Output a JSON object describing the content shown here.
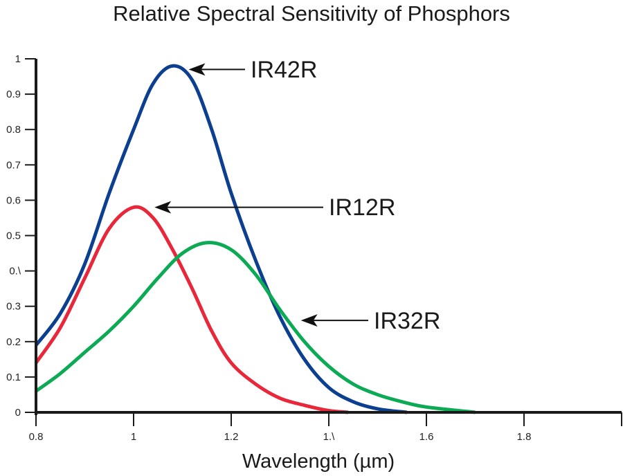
{
  "chart_data": {
    "type": "line",
    "title": "Relative Spectral Sensitivity of Phosphors",
    "xlabel": "Wavelength (µm)",
    "ylabel": "",
    "xlim": [
      0.8,
      2.0
    ],
    "ylim": [
      0,
      1
    ],
    "x_ticks": [
      0.8,
      1.0,
      1.2,
      1.4,
      1.6,
      1.8
    ],
    "x_tick_labels": [
      "0.8",
      "1",
      "1.2",
      "1.\\",
      "1.6",
      "1.8"
    ],
    "y_ticks": [
      0,
      0.1,
      0.2,
      0.3,
      0.4,
      0.5,
      0.6,
      0.7,
      0.8,
      0.9,
      1
    ],
    "y_tick_labels": [
      "0",
      "0.1",
      "0.2",
      "0.3",
      "0.\\",
      "0.5",
      "0.6",
      "0.7",
      "0.8",
      "0.9",
      "1"
    ],
    "grid": false,
    "legend": "none (inline arrow annotations)",
    "series": [
      {
        "name": "IR42R",
        "color": "#0d3f91",
        "points": [
          [
            0.8,
            0.19
          ],
          [
            0.85,
            0.28
          ],
          [
            0.9,
            0.42
          ],
          [
            0.95,
            0.62
          ],
          [
            1.0,
            0.8
          ],
          [
            1.04,
            0.93
          ],
          [
            1.08,
            0.98
          ],
          [
            1.12,
            0.94
          ],
          [
            1.16,
            0.8
          ],
          [
            1.2,
            0.62
          ],
          [
            1.25,
            0.43
          ],
          [
            1.3,
            0.27
          ],
          [
            1.35,
            0.15
          ],
          [
            1.4,
            0.07
          ],
          [
            1.45,
            0.03
          ],
          [
            1.5,
            0.01
          ],
          [
            1.56,
            0.0
          ]
        ]
      },
      {
        "name": "IR12R",
        "color": "#e8283a",
        "points": [
          [
            0.8,
            0.14
          ],
          [
            0.85,
            0.24
          ],
          [
            0.9,
            0.38
          ],
          [
            0.95,
            0.52
          ],
          [
            1.0,
            0.58
          ],
          [
            1.04,
            0.55
          ],
          [
            1.08,
            0.46
          ],
          [
            1.12,
            0.35
          ],
          [
            1.16,
            0.23
          ],
          [
            1.2,
            0.14
          ],
          [
            1.25,
            0.08
          ],
          [
            1.3,
            0.04
          ],
          [
            1.35,
            0.02
          ],
          [
            1.4,
            0.005
          ],
          [
            1.44,
            0.0
          ]
        ]
      },
      {
        "name": "IR32R",
        "color": "#0daa55",
        "points": [
          [
            0.8,
            0.06
          ],
          [
            0.85,
            0.11
          ],
          [
            0.9,
            0.17
          ],
          [
            0.95,
            0.23
          ],
          [
            1.0,
            0.3
          ],
          [
            1.05,
            0.38
          ],
          [
            1.1,
            0.45
          ],
          [
            1.15,
            0.48
          ],
          [
            1.2,
            0.46
          ],
          [
            1.25,
            0.39
          ],
          [
            1.3,
            0.29
          ],
          [
            1.35,
            0.2
          ],
          [
            1.4,
            0.13
          ],
          [
            1.45,
            0.08
          ],
          [
            1.5,
            0.05
          ],
          [
            1.55,
            0.03
          ],
          [
            1.6,
            0.015
          ],
          [
            1.7,
            0.0
          ]
        ]
      }
    ],
    "annotations": [
      {
        "text": "IR42R",
        "points_to_series": "IR42R",
        "at": [
          1.11,
          0.97
        ]
      },
      {
        "text": "IR12R",
        "points_to_series": "IR12R",
        "at": [
          1.04,
          0.58
        ]
      },
      {
        "text": "IR32R",
        "points_to_series": "IR32R",
        "at": [
          1.34,
          0.26
        ]
      }
    ]
  }
}
